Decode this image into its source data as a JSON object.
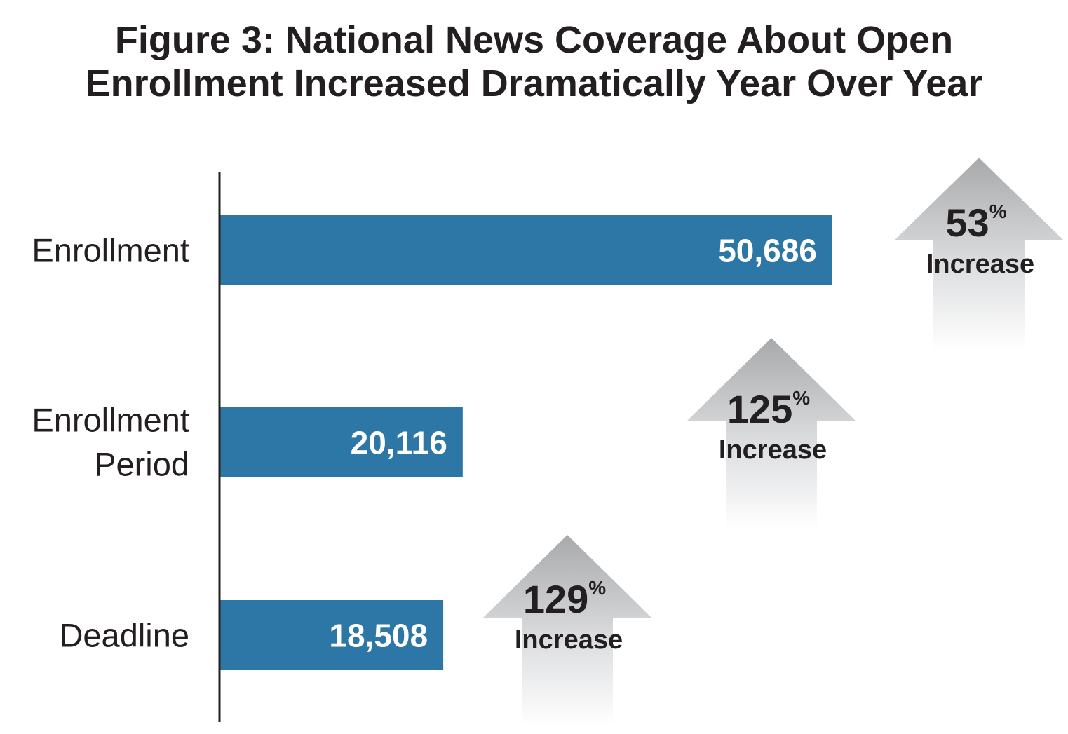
{
  "title_line1": "Figure 3: National News Coverage About Open",
  "title_line2": "Enrollment Increased Dramatically Year Over Year",
  "chart_data": {
    "type": "bar",
    "orientation": "horizontal",
    "title": "Figure 3: National News Coverage About Open Enrollment Increased Dramatically Year Over Year",
    "categories": [
      {
        "lines": [
          "Enrollment"
        ],
        "key": "enrollment"
      },
      {
        "lines": [
          "Enrollment",
          "Period"
        ],
        "key": "enrollment-period"
      },
      {
        "lines": [
          "Deadline"
        ],
        "key": "deadline"
      }
    ],
    "values": [
      50686,
      20116,
      18508
    ],
    "value_labels": [
      "50,686",
      "20,116",
      "18,508"
    ],
    "increase_pct": [
      "53",
      "125",
      "129"
    ],
    "percent_symbol": "%",
    "increase_word": "Increase",
    "xlim": [
      0,
      58000
    ],
    "bar_color": "#2c77a6",
    "axis_color": "#231f20",
    "arrow_color_top": "#a8a9ab",
    "arrow_color_bottom": "#ffffff"
  }
}
